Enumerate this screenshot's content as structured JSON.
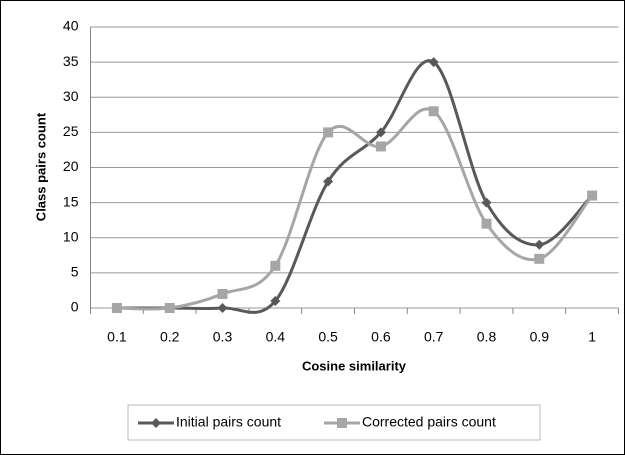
{
  "chart_data": {
    "type": "line",
    "x_label": "Cosine similarity",
    "y_label": "Class pairs count",
    "categories": [
      "0.1",
      "0.2",
      "0.3",
      "0.4",
      "0.5",
      "0.6",
      "0.7",
      "0.8",
      "0.9",
      "1"
    ],
    "series": [
      {
        "name": "Initial pairs count",
        "color": "#595959",
        "marker": "diamond",
        "values": [
          0,
          0,
          0,
          1,
          18,
          25,
          35,
          15,
          9,
          16
        ]
      },
      {
        "name": "Corrected pairs count",
        "color": "#a6a6a6",
        "marker": "square",
        "values": [
          0,
          0,
          2,
          6,
          25,
          23,
          28,
          12,
          7,
          16
        ]
      }
    ],
    "ylim": [
      0,
      40
    ],
    "yticks": [
      0,
      5,
      10,
      15,
      20,
      25,
      30,
      35,
      40
    ],
    "grid": true,
    "legend": "bottom"
  }
}
